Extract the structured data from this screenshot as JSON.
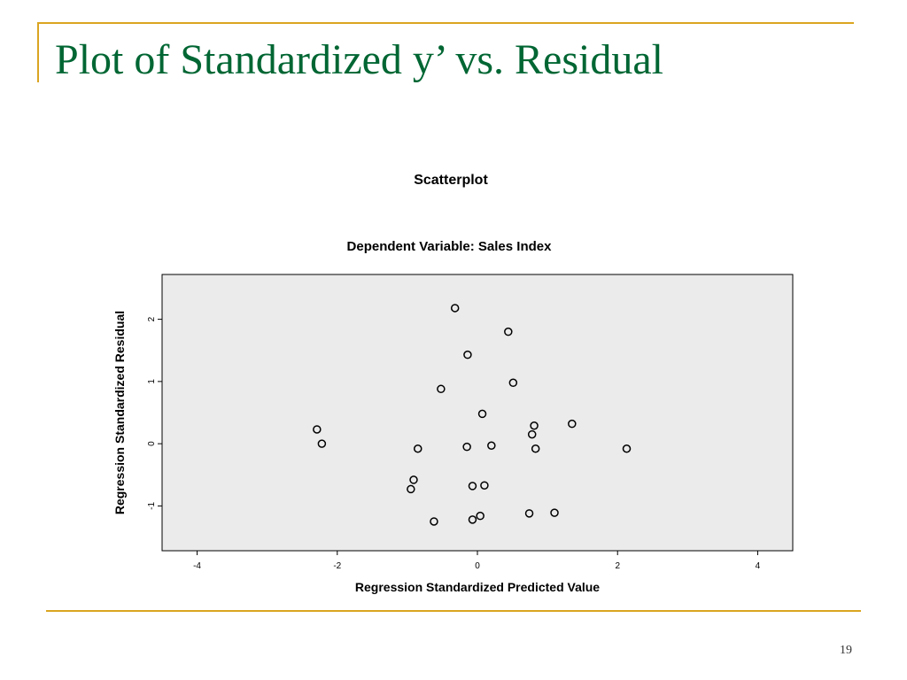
{
  "slide": {
    "title": "Plot of Standardized y’ vs. Residual",
    "page_number": "19",
    "title_color": "#006633",
    "accent_color": "#DAA520"
  },
  "chart_data": {
    "type": "scatter",
    "title": "Scatterplot",
    "subtitle": "Dependent Variable: Sales Index",
    "xlabel": "Regression Standardized Predicted Value",
    "ylabel": "Regression Standardized Residual",
    "xlim": [
      -4.5,
      4.5
    ],
    "ylim": [
      -1.72,
      2.72
    ],
    "x_ticks": [
      -4,
      -2,
      0,
      2,
      4
    ],
    "y_ticks": [
      -1,
      0,
      1,
      2
    ],
    "grid": false,
    "plot_background": "#EBEBEB",
    "marker": "hollow-circle",
    "points": [
      {
        "x": -0.32,
        "y": 2.18
      },
      {
        "x": 0.44,
        "y": 1.8
      },
      {
        "x": -0.14,
        "y": 1.43
      },
      {
        "x": 0.51,
        "y": 0.98
      },
      {
        "x": -0.52,
        "y": 0.88
      },
      {
        "x": 0.07,
        "y": 0.48
      },
      {
        "x": 0.81,
        "y": 0.29
      },
      {
        "x": 1.35,
        "y": 0.32
      },
      {
        "x": 0.78,
        "y": 0.15
      },
      {
        "x": -2.29,
        "y": 0.23
      },
      {
        "x": -2.22,
        "y": 0.0
      },
      {
        "x": -0.85,
        "y": -0.08
      },
      {
        "x": -0.15,
        "y": -0.05
      },
      {
        "x": 0.2,
        "y": -0.03
      },
      {
        "x": 0.83,
        "y": -0.08
      },
      {
        "x": 2.13,
        "y": -0.08
      },
      {
        "x": -0.91,
        "y": -0.58
      },
      {
        "x": -0.95,
        "y": -0.73
      },
      {
        "x": -0.07,
        "y": -0.68
      },
      {
        "x": 0.1,
        "y": -0.67
      },
      {
        "x": 0.74,
        "y": -1.12
      },
      {
        "x": 1.1,
        "y": -1.11
      },
      {
        "x": 0.04,
        "y": -1.16
      },
      {
        "x": -0.07,
        "y": -1.22
      },
      {
        "x": -0.62,
        "y": -1.25
      }
    ]
  }
}
